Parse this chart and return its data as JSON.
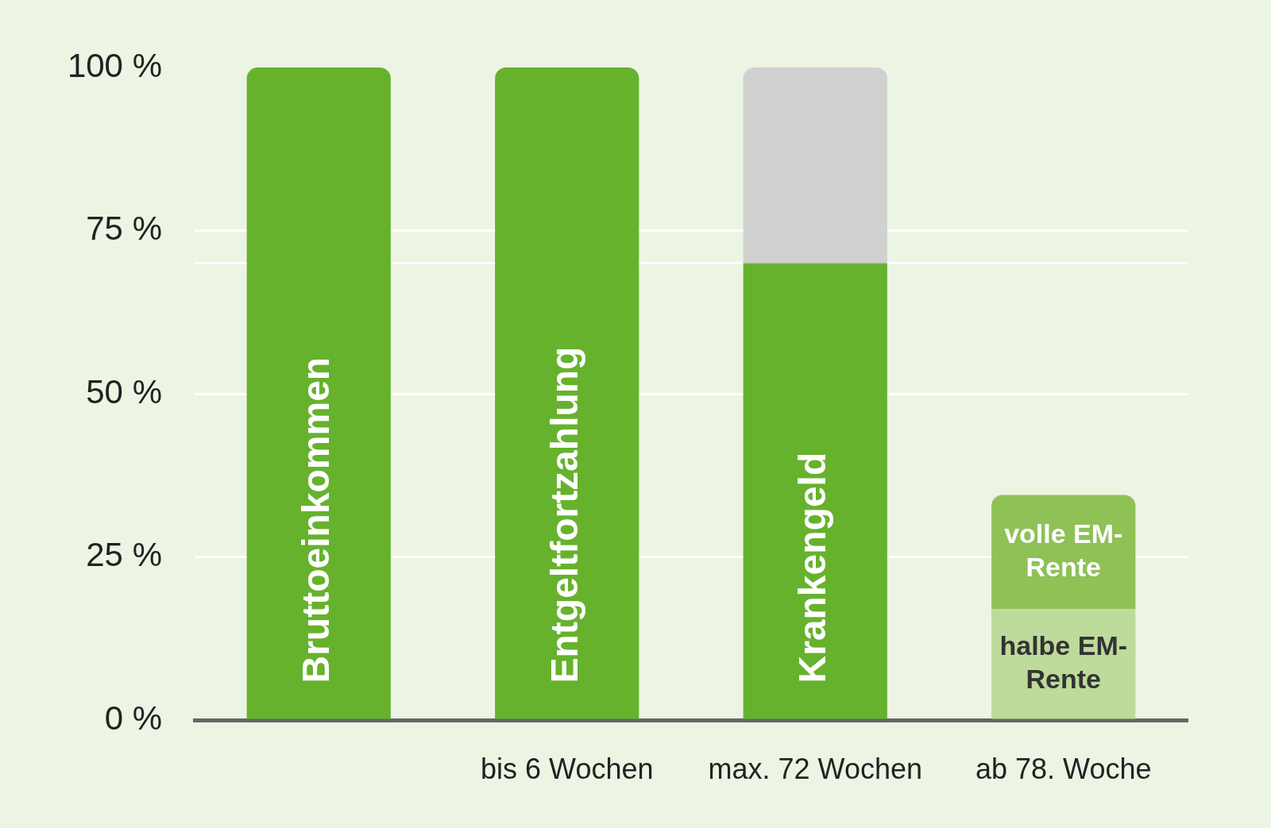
{
  "chart_data": {
    "type": "bar",
    "stacked": true,
    "categories": [
      null,
      "bis 6 Wochen",
      "max. 72 Wochen",
      "ab 78. Woche"
    ],
    "series": [
      {
        "name": "Bruttoeinkommen",
        "color": "#66b22d",
        "values": [
          100,
          null,
          null,
          null
        ]
      },
      {
        "name": "Entgeltfortzahlung",
        "color": "#66b22d",
        "values": [
          null,
          100,
          null,
          null
        ]
      },
      {
        "name": "Krankengeld",
        "color": "#66b22d",
        "values": [
          null,
          null,
          70,
          null
        ]
      },
      {
        "color": "#d0d1d0",
        "values": [
          null,
          null,
          30,
          null
        ]
      },
      {
        "name": "halbe EM-Rente",
        "color": "#bddb9a",
        "values": [
          null,
          null,
          null,
          17
        ]
      },
      {
        "name": "volle EM-Rente",
        "color": "#8fc156",
        "values": [
          null,
          null,
          null,
          17.5
        ]
      }
    ],
    "ylim": [
      0,
      100
    ],
    "yticks": [
      {
        "value": 0,
        "label": "0 %"
      },
      {
        "value": 25,
        "label": "25 %"
      },
      {
        "value": 50,
        "label": "50 %"
      },
      {
        "value": 75,
        "label": "75 %"
      },
      {
        "value": 100,
        "label": "100 %"
      }
    ],
    "grid": "y",
    "legend": false,
    "ref_lines": [
      {
        "axis": "y",
        "value": 70,
        "color": "#ffffff"
      }
    ]
  }
}
